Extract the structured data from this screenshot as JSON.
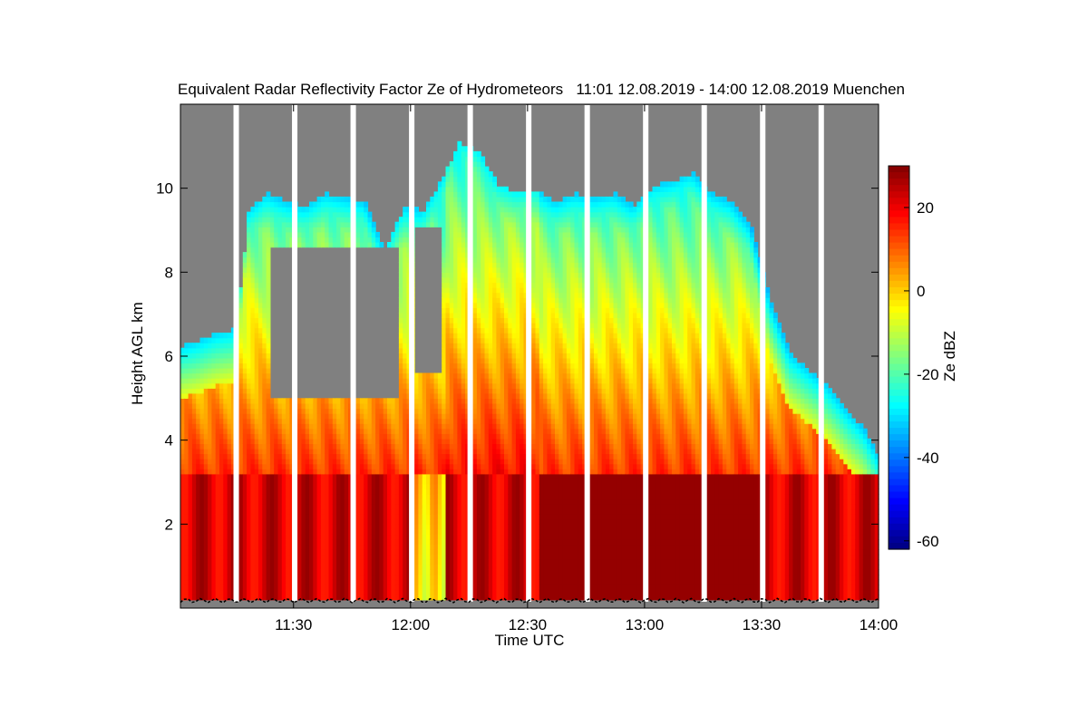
{
  "chart_data": {
    "type": "heatmap",
    "title": "Equivalent Radar Reflectivity Factor Ze of Hydrometeors   11:01 12.08.2019 - 14:00 12.08.2019 Muenchen",
    "xlabel": "Time UTC",
    "ylabel": "Height AGL km",
    "colorbar_label": "Ze dBZ",
    "x_range_min": [
      661,
      840
    ],
    "x_ticks": [
      {
        "min": 690,
        "label": "11:30"
      },
      {
        "min": 720,
        "label": "12:00"
      },
      {
        "min": 750,
        "label": "12:30"
      },
      {
        "min": 780,
        "label": "13:00"
      },
      {
        "min": 810,
        "label": "13:30"
      },
      {
        "min": 840,
        "label": "14:00"
      }
    ],
    "y_range_km": [
      0,
      12
    ],
    "y_ticks": [
      2,
      4,
      6,
      8,
      10
    ],
    "colorbar_range": [
      -62,
      30
    ],
    "colorbar_ticks": [
      20,
      0,
      -20,
      -40,
      -60
    ],
    "gap_times_min": [
      675.3,
      690.3,
      705.3,
      720.3,
      735.3,
      750.3,
      765.3,
      780.3,
      795.3,
      810.3,
      825.3
    ],
    "colors": {
      "no_data": "#808080",
      "gap": "#ffffff",
      "colormap": [
        "#00007f",
        "#0000ff",
        "#007fff",
        "#00ffff",
        "#7fff7f",
        "#ffff00",
        "#ff7f00",
        "#ff0000",
        "#7f0000"
      ]
    },
    "cloud_top_km": [
      {
        "t": 661,
        "h": 6.2
      },
      {
        "t": 665,
        "h": 6.3
      },
      {
        "t": 670,
        "h": 6.5
      },
      {
        "t": 675,
        "h": 6.6
      },
      {
        "t": 678,
        "h": 9.4
      },
      {
        "t": 683,
        "h": 9.8
      },
      {
        "t": 688,
        "h": 9.6
      },
      {
        "t": 693,
        "h": 9.5
      },
      {
        "t": 698,
        "h": 9.8
      },
      {
        "t": 703,
        "h": 9.7
      },
      {
        "t": 708,
        "h": 9.6
      },
      {
        "t": 713,
        "h": 8.5
      },
      {
        "t": 718,
        "h": 9.5
      },
      {
        "t": 723,
        "h": 9.4
      },
      {
        "t": 728,
        "h": 10.2
      },
      {
        "t": 732,
        "h": 11.0
      },
      {
        "t": 737,
        "h": 10.8
      },
      {
        "t": 742,
        "h": 10.0
      },
      {
        "t": 747,
        "h": 9.8
      },
      {
        "t": 752,
        "h": 9.9
      },
      {
        "t": 757,
        "h": 9.6
      },
      {
        "t": 762,
        "h": 9.8
      },
      {
        "t": 767,
        "h": 9.7
      },
      {
        "t": 772,
        "h": 9.8
      },
      {
        "t": 777,
        "h": 9.5
      },
      {
        "t": 782,
        "h": 10.0
      },
      {
        "t": 787,
        "h": 10.1
      },
      {
        "t": 792,
        "h": 10.3
      },
      {
        "t": 797,
        "h": 9.8
      },
      {
        "t": 802,
        "h": 9.6
      },
      {
        "t": 807,
        "h": 9.0
      },
      {
        "t": 812,
        "h": 7.2
      },
      {
        "t": 817,
        "h": 6.0
      },
      {
        "t": 822,
        "h": 5.6
      },
      {
        "t": 827,
        "h": 5.2
      },
      {
        "t": 832,
        "h": 4.6
      },
      {
        "t": 836,
        "h": 4.2
      },
      {
        "t": 840,
        "h": 3.5
      }
    ],
    "clear_pockets_km": [
      {
        "t0": 684,
        "t1": 716,
        "h0": 4.9,
        "h1": 8.6
      },
      {
        "t0": 721,
        "t1": 727,
        "h0": 5.6,
        "h1": 9.0
      }
    ],
    "bright_band_km": 3.2
  }
}
